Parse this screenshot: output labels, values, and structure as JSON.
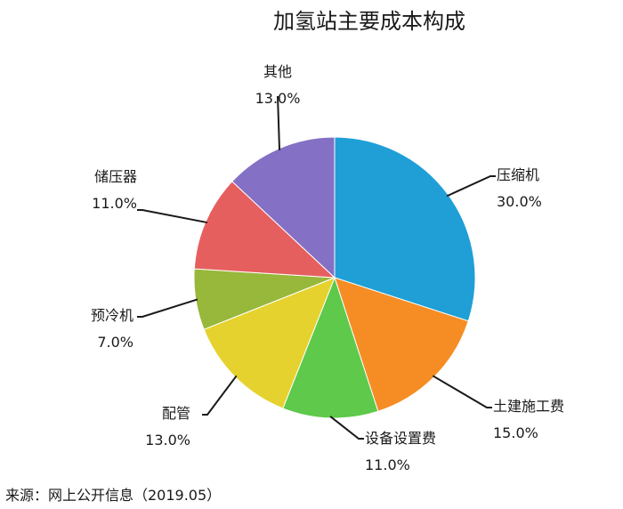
{
  "chart_data": {
    "type": "pie",
    "title": "加氢站主要成本构成",
    "slices": [
      {
        "label": "压缩机",
        "value": 30.0,
        "value_label": "30.0%",
        "color": "#1f9fd6"
      },
      {
        "label": "土建施工费",
        "value": 15.0,
        "value_label": "15.0%",
        "color": "#f68d24"
      },
      {
        "label": "设备设置费",
        "value": 11.0,
        "value_label": "11.0%",
        "color": "#5ec94a"
      },
      {
        "label": "配管",
        "value": 13.0,
        "value_label": "13.0%",
        "color": "#e6d22e"
      },
      {
        "label": "预冷机",
        "value": 7.0,
        "value_label": "7.0%",
        "color": "#97b83a"
      },
      {
        "label": "储压器",
        "value": 11.0,
        "value_label": "11.0%",
        "color": "#e65f5f"
      },
      {
        "label": "其他",
        "value": 13.0,
        "value_label": "13.0%",
        "color": "#8470c4"
      }
    ],
    "start": "top",
    "direction": "clockwise"
  },
  "source": "来源：网上公开信息（2019.05）"
}
